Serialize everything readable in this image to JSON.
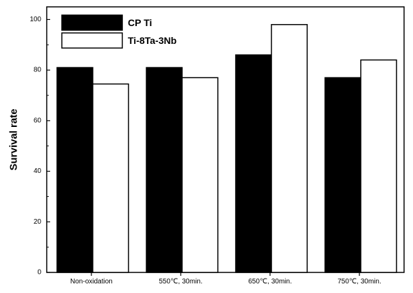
{
  "chart_data": {
    "type": "bar",
    "categories": [
      "Non-oxidation",
      "550℃, 30min.",
      "650℃, 30min.",
      "750℃, 30min."
    ],
    "series": [
      {
        "name": "CP Ti",
        "values": [
          81,
          81,
          86,
          77
        ],
        "color": "#000000"
      },
      {
        "name": "Ti-8Ta-3Nb",
        "values": [
          74.5,
          77,
          98,
          84
        ],
        "color": "#ffffff"
      }
    ],
    "title": "",
    "xlabel": "",
    "ylabel": "Survival rate",
    "ylim": [
      0,
      105
    ],
    "yticks": [
      0,
      20,
      40,
      60,
      80,
      100
    ],
    "grid": false,
    "legend_position": "top-left"
  }
}
